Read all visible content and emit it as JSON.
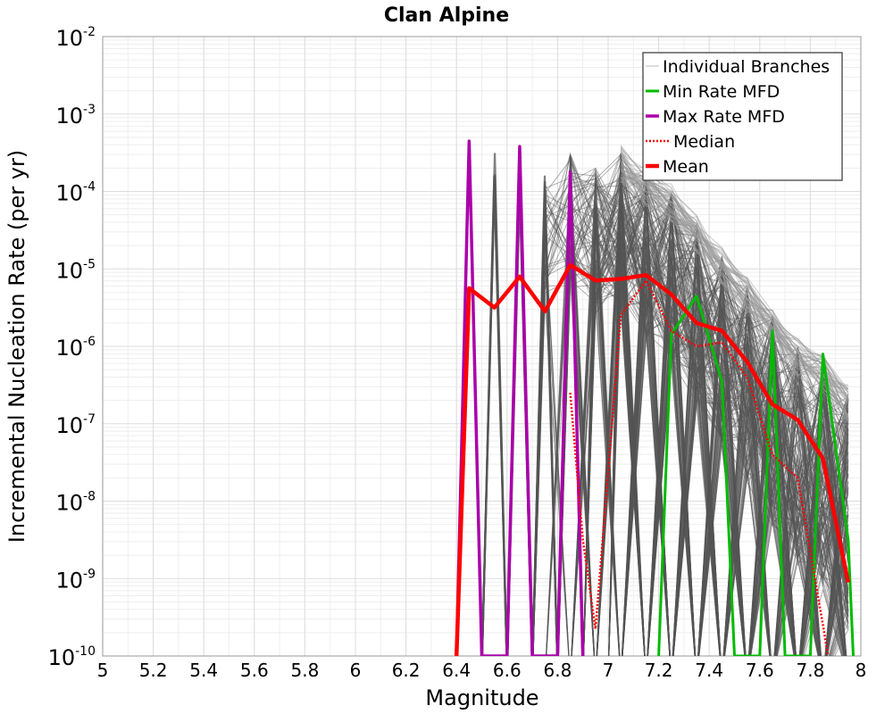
{
  "chart_data": {
    "type": "line",
    "title": "Clan Alpine",
    "xlabel": "Magnitude",
    "ylabel": "Incremental Nucleation Rate (per yr)",
    "xlim": [
      5,
      8
    ],
    "ylim_log10": [
      -10,
      -2
    ],
    "y_scale": "log",
    "grid": true,
    "x_tick_values": [
      5,
      5.2,
      5.4,
      5.6,
      5.8,
      6,
      6.2,
      6.4,
      6.6,
      6.8,
      7,
      7.2,
      7.4,
      7.6,
      7.8,
      8
    ],
    "x_tick_labels": [
      "5",
      "5.2",
      "5.4",
      "5.6",
      "5.8",
      "6",
      "6.2",
      "6.4",
      "6.6",
      "6.8",
      "7",
      "7.2",
      "7.4",
      "7.6",
      "7.8",
      "8"
    ],
    "y_tick_exponents": [
      -10,
      -9,
      -8,
      -7,
      -6,
      -5,
      -4,
      -3,
      -2
    ],
    "y_tick_base": "10",
    "legend_position": "top-right",
    "colors": {
      "branches": "#555555",
      "min_rate": "#00bb00",
      "max_rate": "#aa00aa",
      "median": "#ff0000",
      "mean": "#ff0000"
    },
    "x": [
      6.35,
      6.45,
      6.55,
      6.65,
      6.75,
      6.85,
      6.95,
      7.05,
      7.15,
      7.25,
      7.35,
      7.45,
      7.55,
      7.65,
      7.75,
      7.85,
      7.95
    ],
    "series": [
      {
        "key": "branches",
        "name": "Individual Branches",
        "style": "thin-gray",
        "peaks": [
          {
            "x": 6.55,
            "log10": -3.4
          },
          {
            "x": 6.65,
            "log10": -3.4
          },
          {
            "x": 6.75,
            "log10": -3.7
          },
          {
            "x": 6.85,
            "log10": -3.3
          },
          {
            "x": 6.95,
            "log10": -3.5
          },
          {
            "x": 7.05,
            "log10": -3.3
          },
          {
            "x": 7.15,
            "log10": -3.6
          },
          {
            "x": 7.25,
            "log10": -3.8
          },
          {
            "x": 7.35,
            "log10": -4.2
          },
          {
            "x": 7.45,
            "log10": -4.6
          },
          {
            "x": 7.55,
            "log10": -5.0
          },
          {
            "x": 7.65,
            "log10": -5.4
          },
          {
            "x": 7.75,
            "log10": -5.8
          },
          {
            "x": 7.85,
            "log10": -6.0
          },
          {
            "x": 7.95,
            "log10": -6.4
          }
        ]
      },
      {
        "key": "min_rate",
        "name": "Min Rate MFD",
        "style": "solid",
        "points": [
          [
            7.2,
            -10
          ],
          [
            7.25,
            -5.85
          ],
          [
            7.35,
            -5.35
          ],
          [
            7.45,
            -6.45
          ],
          [
            7.5,
            -10
          ],
          [
            7.6,
            -10
          ],
          [
            7.65,
            -5.8
          ],
          [
            7.7,
            -10
          ],
          [
            7.8,
            -10
          ],
          [
            7.85,
            -6.1
          ],
          [
            7.95,
            -8.5
          ],
          [
            7.97,
            -10
          ]
        ]
      },
      {
        "key": "max_rate",
        "name": "Max Rate MFD",
        "style": "solid",
        "points": [
          [
            6.4,
            -10
          ],
          [
            6.45,
            -3.35
          ],
          [
            6.5,
            -10
          ],
          [
            6.6,
            -10
          ],
          [
            6.65,
            -3.42
          ],
          [
            6.7,
            -10
          ],
          [
            6.8,
            -10
          ],
          [
            6.85,
            -3.75
          ],
          [
            6.9,
            -10
          ]
        ]
      },
      {
        "key": "median",
        "name": "Median",
        "style": "dotted",
        "points": [
          [
            6.85,
            -6.6
          ],
          [
            6.9,
            -8.5
          ],
          [
            6.95,
            -9.65
          ],
          [
            7.05,
            -5.6
          ],
          [
            7.15,
            -5.15
          ],
          [
            7.25,
            -5.8
          ],
          [
            7.35,
            -6.0
          ],
          [
            7.45,
            -5.95
          ],
          [
            7.55,
            -6.4
          ],
          [
            7.65,
            -7.4
          ],
          [
            7.75,
            -7.7
          ],
          [
            7.85,
            -9.6
          ],
          [
            7.87,
            -10
          ]
        ]
      },
      {
        "key": "mean",
        "name": "Mean",
        "style": "thick",
        "points": [
          [
            6.4,
            -10
          ],
          [
            6.45,
            -5.25
          ],
          [
            6.55,
            -5.5
          ],
          [
            6.65,
            -5.1
          ],
          [
            6.75,
            -5.55
          ],
          [
            6.85,
            -4.95
          ],
          [
            6.95,
            -5.15
          ],
          [
            7.05,
            -5.13
          ],
          [
            7.15,
            -5.08
          ],
          [
            7.25,
            -5.33
          ],
          [
            7.35,
            -5.7
          ],
          [
            7.45,
            -5.8
          ],
          [
            7.55,
            -6.2
          ],
          [
            7.65,
            -6.75
          ],
          [
            7.75,
            -6.95
          ],
          [
            7.85,
            -7.45
          ],
          [
            7.95,
            -9.05
          ]
        ]
      }
    ]
  }
}
